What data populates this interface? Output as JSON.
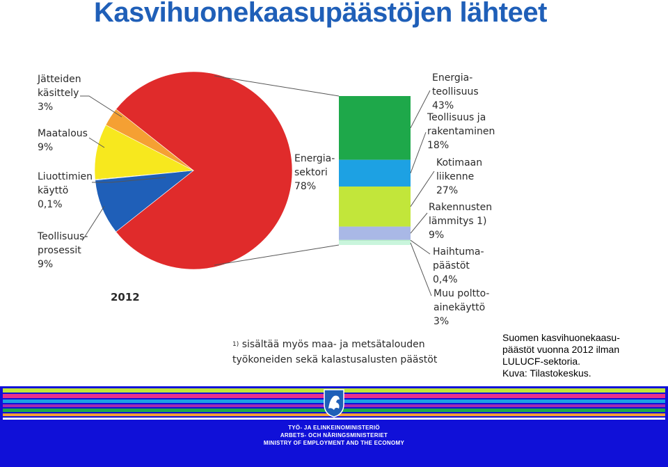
{
  "page": {
    "title": "Kasvihuonekaasupäästöjen lähteet",
    "year": "2012",
    "footnote": {
      "marker": "1)",
      "line1": "sisältää myös maa- ja metsätalouden",
      "line2": "työkoneiden sekä kalastusalusten päästöt"
    },
    "caption": "Suomen kasvihuonekaasu-\npäästöt vuonna 2012 ilman\nLULUCF-sektoria.\nKuva: Tilastokeskus.",
    "footer": {
      "line1": "TYÖ- JA ELINKEINOMINISTERIÖ",
      "line2": "ARBETS- OCH NÄRINGSMINISTERIET",
      "line3": "MINISTRY OF EMPLOYMENT AND THE ECONOMY"
    }
  },
  "chart_data": [
    {
      "type": "pie",
      "slices": [
        {
          "name": "Energiasektori",
          "label": "Energia-\nsektori\n78%",
          "value": 78,
          "color": "#e02b2b"
        },
        {
          "name": "Teollisuusprosessit",
          "label": "Teollisuus-\nprosessit\n9%",
          "value": 9,
          "color": "#1f5fb8"
        },
        {
          "name": "Liuottimien käyttö",
          "label": "Liuottimien\nkäyttö\n0,1%",
          "value": 0.1,
          "color": "#6a6a6a"
        },
        {
          "name": "Maatalous",
          "label": "Maatalous\n9%",
          "value": 9,
          "color": "#f7e81e"
        },
        {
          "name": "Jätteiden käsittely",
          "label": "Jätteiden\nkäsittely\n3%",
          "value": 3,
          "color": "#f5a033"
        }
      ]
    },
    {
      "type": "bar",
      "stacked": true,
      "categories": [
        "Energiateollisuus",
        "Teollisuus ja rakentaminen",
        "Kotimaan liikenne",
        "Rakennusten lämmitys",
        "Haihtumapäästöt",
        "Muu polttoainekäyttö"
      ],
      "labels": [
        "Energia-\nteollisuus\n43%",
        "Teollisuus ja\nrakentaminen\n18%",
        "Kotimaan\nliikenne\n27%",
        "Rakennusten\nlämmitys 1)\n9%",
        "Haihtuma-\npäästöt\n0,4%",
        "Muu poltto-\nainekäyttö\n3%"
      ],
      "values": [
        43,
        18,
        27,
        9,
        0.4,
        3
      ],
      "colors": [
        "#1ea84a",
        "#1da1e3",
        "#c2e63a",
        "#a9b8e6",
        "#a9e8b8",
        "#c9f5dc"
      ]
    }
  ]
}
